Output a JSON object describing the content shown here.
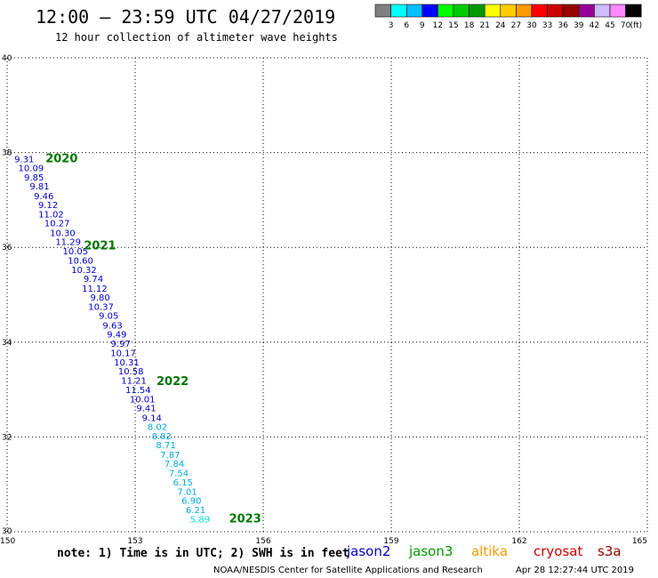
{
  "header": {
    "title": "12:00 – 23:59 UTC 04/27/2019",
    "subtitle": "12 hour collection of altimeter wave heights"
  },
  "color_scale": {
    "unit": "(ft)",
    "colors": [
      "#808080",
      "#00ffff",
      "#00bfff",
      "#0000ff",
      "#00ff00",
      "#00cc00",
      "#009900",
      "#ffff00",
      "#ffcc00",
      "#ff9900",
      "#ff0000",
      "#cc0000",
      "#990000",
      "#990099",
      "#ccbbff",
      "#ff88ff",
      "#000000"
    ],
    "labels": [
      "3",
      "6",
      "9",
      "12",
      "15",
      "18",
      "21",
      "24",
      "27",
      "30",
      "33",
      "36",
      "39",
      "42",
      "45",
      "70"
    ]
  },
  "note": "note:  1) Time is in UTC;  2) SWH is in feet",
  "legend": [
    {
      "name": "jason2",
      "color": "#0000cc"
    },
    {
      "name": "jason3",
      "color": "#009900"
    },
    {
      "name": "altika",
      "color": "#ff9900"
    },
    {
      "name": "cryosat",
      "color": "#cc0000"
    },
    {
      "name": "s3a",
      "color": "#990000"
    }
  ],
  "footer": {
    "credit": "NOAA/NESDIS Center for Satellite Applications and Research",
    "timestamp": "Apr 28 12:27:44 UTC 2019"
  },
  "chart_data": {
    "type": "scatter",
    "xlim": [
      150,
      165
    ],
    "ylim": [
      30,
      40
    ],
    "xticks": [
      "150",
      "153",
      "156",
      "159",
      "162",
      "165"
    ],
    "yticks": [
      "30",
      "32",
      "34",
      "36",
      "38",
      "40"
    ],
    "grid": true,
    "pass_labels": [
      {
        "text": "2020",
        "x": 150.9,
        "y": 37.8
      },
      {
        "text": "2021",
        "x": 151.8,
        "y": 35.96
      },
      {
        "text": "2022",
        "x": 153.5,
        "y": 33.1
      },
      {
        "text": "2023",
        "x": 155.2,
        "y": 30.2
      }
    ],
    "points": [
      {
        "x": 150.4,
        "y": 37.8,
        "value": "9.31",
        "color": "#0000cc"
      },
      {
        "x": 150.56,
        "y": 37.61,
        "value": "10.09",
        "color": "#0000cc"
      },
      {
        "x": 150.63,
        "y": 37.41,
        "value": "9.85",
        "color": "#0000cc"
      },
      {
        "x": 150.76,
        "y": 37.22,
        "value": "9.81",
        "color": "#0000cc"
      },
      {
        "x": 150.86,
        "y": 37.02,
        "value": "9.46",
        "color": "#0000cc"
      },
      {
        "x": 150.96,
        "y": 36.83,
        "value": "9.12",
        "color": "#0000cc"
      },
      {
        "x": 151.03,
        "y": 36.63,
        "value": "11.02",
        "color": "#0000cc"
      },
      {
        "x": 151.17,
        "y": 36.44,
        "value": "10.27",
        "color": "#0000cc"
      },
      {
        "x": 151.3,
        "y": 36.24,
        "value": "10.30",
        "color": "#0000cc"
      },
      {
        "x": 151.43,
        "y": 36.05,
        "value": "11.29",
        "color": "#0000cc"
      },
      {
        "x": 151.6,
        "y": 35.85,
        "value": "10.05",
        "color": "#0000cc"
      },
      {
        "x": 151.72,
        "y": 35.66,
        "value": "10.60",
        "color": "#0000cc"
      },
      {
        "x": 151.8,
        "y": 35.46,
        "value": "10.32",
        "color": "#0000cc"
      },
      {
        "x": 152.02,
        "y": 35.27,
        "value": "9.74",
        "color": "#0000cc"
      },
      {
        "x": 152.05,
        "y": 35.07,
        "value": "11.12",
        "color": "#0000cc"
      },
      {
        "x": 152.18,
        "y": 34.88,
        "value": "9.80",
        "color": "#0000cc"
      },
      {
        "x": 152.2,
        "y": 34.68,
        "value": "10.37",
        "color": "#0000cc"
      },
      {
        "x": 152.38,
        "y": 34.49,
        "value": "9.05",
        "color": "#0000cc"
      },
      {
        "x": 152.47,
        "y": 34.29,
        "value": "9.63",
        "color": "#0000cc"
      },
      {
        "x": 152.57,
        "y": 34.1,
        "value": "9.49",
        "color": "#0000cc"
      },
      {
        "x": 152.66,
        "y": 33.9,
        "value": "9.97",
        "color": "#0000cc"
      },
      {
        "x": 152.72,
        "y": 33.71,
        "value": "10.17",
        "color": "#0000cc"
      },
      {
        "x": 152.8,
        "y": 33.51,
        "value": "10.31",
        "color": "#0000cc"
      },
      {
        "x": 152.9,
        "y": 33.32,
        "value": "10.58",
        "color": "#0000cc"
      },
      {
        "x": 152.97,
        "y": 33.12,
        "value": "11.21",
        "color": "#0000cc"
      },
      {
        "x": 153.07,
        "y": 32.93,
        "value": "11.54",
        "color": "#0000cc"
      },
      {
        "x": 153.17,
        "y": 32.73,
        "value": "10.01",
        "color": "#0000cc"
      },
      {
        "x": 153.26,
        "y": 32.54,
        "value": "9.41",
        "color": "#0000cc"
      },
      {
        "x": 153.39,
        "y": 32.34,
        "value": "9.14",
        "color": "#0000cc"
      },
      {
        "x": 153.52,
        "y": 32.15,
        "value": "8.02",
        "color": "#00aadd"
      },
      {
        "x": 153.62,
        "y": 31.95,
        "value": "8.82",
        "color": "#00aadd"
      },
      {
        "x": 153.72,
        "y": 31.76,
        "value": "8.71",
        "color": "#00aadd"
      },
      {
        "x": 153.82,
        "y": 31.56,
        "value": "7.87",
        "color": "#00aadd"
      },
      {
        "x": 153.92,
        "y": 31.37,
        "value": "7.84",
        "color": "#00aadd"
      },
      {
        "x": 154.02,
        "y": 31.17,
        "value": "7.54",
        "color": "#00aadd"
      },
      {
        "x": 154.12,
        "y": 30.98,
        "value": "6.15",
        "color": "#00aadd"
      },
      {
        "x": 154.22,
        "y": 30.78,
        "value": "7.01",
        "color": "#00aadd"
      },
      {
        "x": 154.32,
        "y": 30.59,
        "value": "6.90",
        "color": "#00aadd"
      },
      {
        "x": 154.42,
        "y": 30.39,
        "value": "6.21",
        "color": "#00aadd"
      },
      {
        "x": 154.52,
        "y": 30.2,
        "value": "5.89",
        "color": "#00dddd"
      }
    ]
  }
}
